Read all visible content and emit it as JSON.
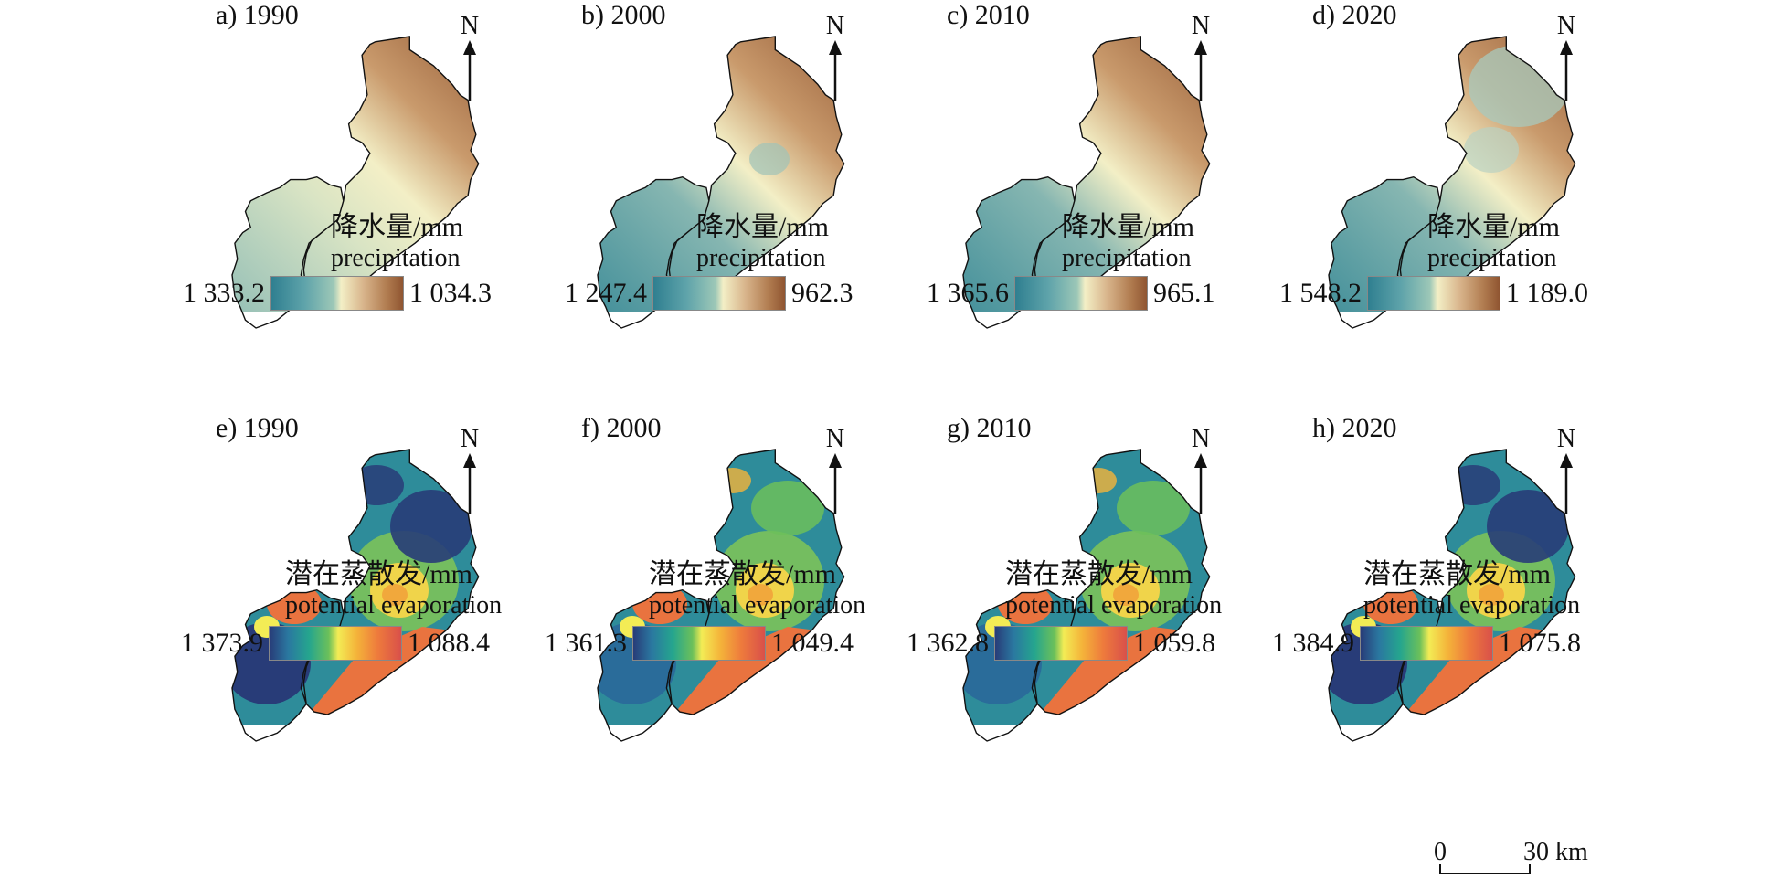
{
  "panels": [
    {
      "title": "a) 1990",
      "north": "N",
      "legend_zh": "降水量/mm",
      "legend_en": "precipitation",
      "min_label": "1 333.2",
      "max_label": "1 034.3"
    },
    {
      "title": "b) 2000",
      "north": "N",
      "legend_zh": "降水量/mm",
      "legend_en": "precipitation",
      "min_label": "1 247.4",
      "max_label": "962.3"
    },
    {
      "title": "c) 2010",
      "north": "N",
      "legend_zh": "降水量/mm",
      "legend_en": "precipitation",
      "min_label": "1 365.6",
      "max_label": "965.1"
    },
    {
      "title": "d) 2020",
      "north": "N",
      "legend_zh": "降水量/mm",
      "legend_en": "precipitation",
      "min_label": "1 548.2",
      "max_label": "1 189.0"
    },
    {
      "title": "e) 1990",
      "north": "N",
      "legend_zh": "潜在蒸散发/mm",
      "legend_en": "potential evaporation",
      "min_label": "1 373.9",
      "max_label": "1 088.4"
    },
    {
      "title": "f) 2000",
      "north": "N",
      "legend_zh": "潜在蒸散发/mm",
      "legend_en": "potential evaporation",
      "min_label": "1 361.3",
      "max_label": "1 049.4"
    },
    {
      "title": "g) 2010",
      "north": "N",
      "legend_zh": "潜在蒸散发/mm",
      "legend_en": "potential evaporation",
      "min_label": "1 362.8",
      "max_label": "1 059.8"
    },
    {
      "title": "h) 2020",
      "north": "N",
      "legend_zh": "潜在蒸散发/mm",
      "legend_en": "potential evaporation",
      "min_label": "1 384.9",
      "max_label": "1 075.8"
    }
  ],
  "scale_bar": {
    "start": "0",
    "end": "30 km"
  },
  "colors": {
    "precip_wet": "#2f7f90",
    "precip_mid": "#f3efc6",
    "precip_dry": "#8f5531",
    "evap_low": "#283c78",
    "evap_mid": "#f3ec55",
    "evap_high": "#d9504a",
    "boundary": "#111111"
  }
}
